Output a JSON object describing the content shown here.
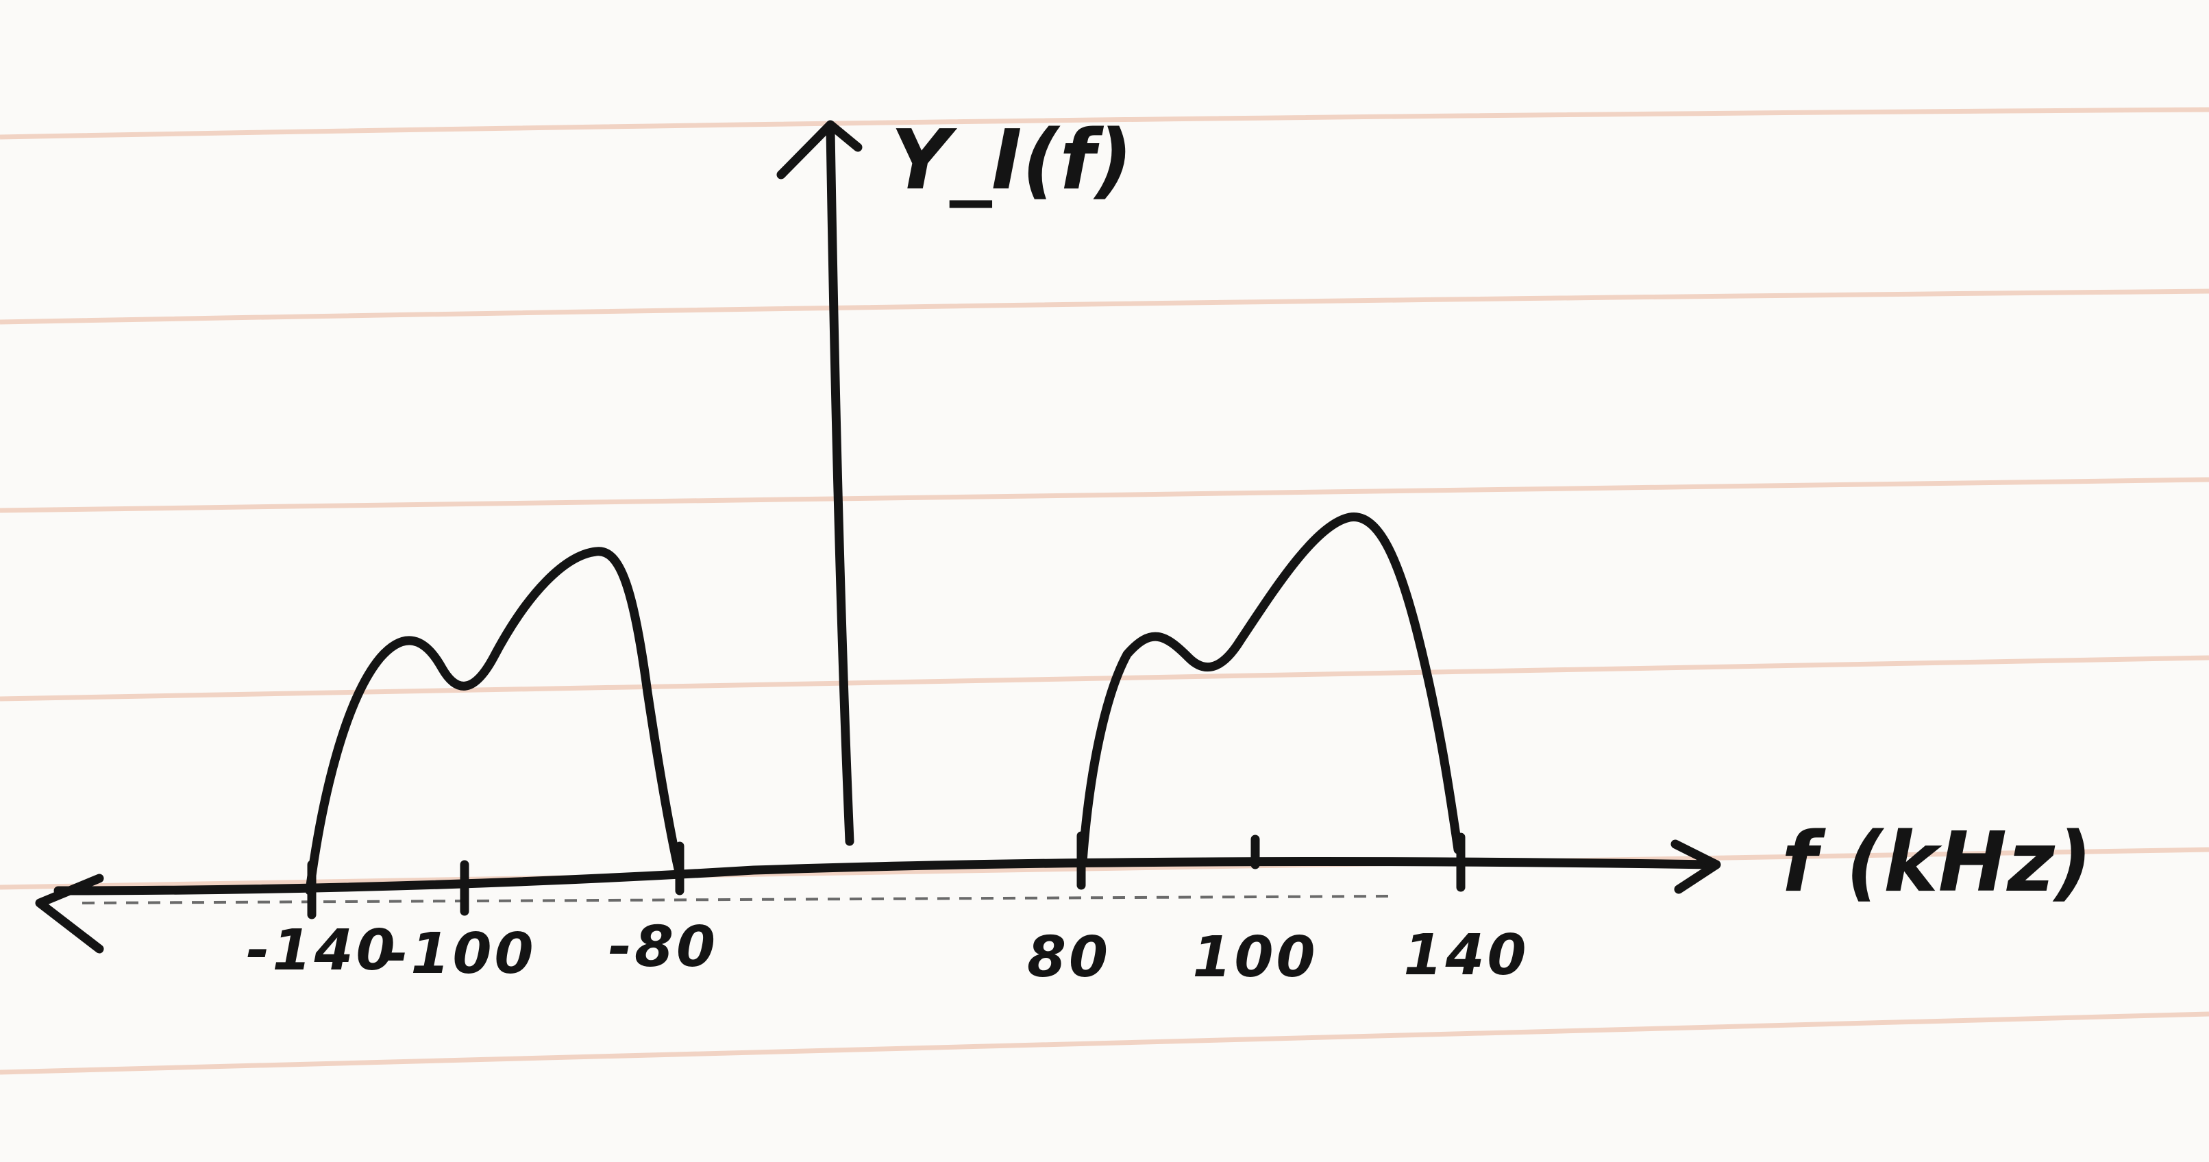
{
  "diagram": {
    "y_axis_label": "Y_I(f)",
    "x_axis_label": "f (kHz)",
    "tick_labels": [
      "-140",
      "-100",
      "-80",
      "80",
      "100",
      "140"
    ],
    "colors": {
      "ink": "#141414",
      "paper": "#fbfaf8",
      "ruled_line": "#f1d3c4"
    }
  }
}
